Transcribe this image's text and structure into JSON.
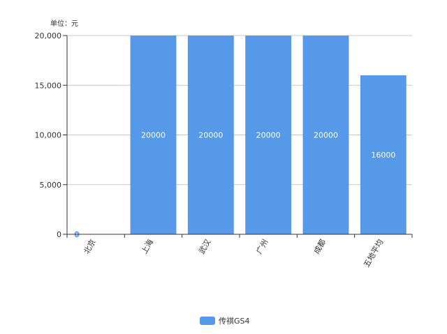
{
  "chart_data": {
    "type": "bar",
    "unit_label": "单位：元",
    "categories": [
      "北京",
      "上海",
      "武汉",
      "广州",
      "成都",
      "五地平均"
    ],
    "series": [
      {
        "name": "传祺GS4",
        "values": [
          0,
          20000,
          20000,
          20000,
          20000,
          16000
        ]
      }
    ],
    "data_labels": [
      "0",
      "20000",
      "20000",
      "20000",
      "20000",
      "16000"
    ],
    "ylim": [
      0,
      20000
    ],
    "yticks": [
      0,
      5000,
      10000,
      15000,
      20000
    ],
    "ytick_labels": [
      "0",
      "5,000",
      "10,000",
      "15,000",
      "20,000"
    ],
    "grid": true,
    "legend_position": "bottom-center",
    "colors": {
      "bar": "#5599e8",
      "grid": "#c8c8c8",
      "axis": "#333333"
    }
  }
}
